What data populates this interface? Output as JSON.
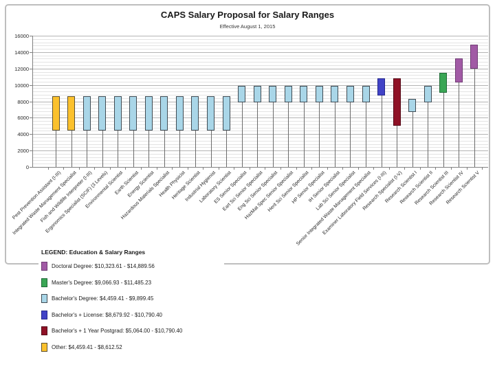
{
  "chart_data": {
    "type": "bar",
    "subtype": "floating-range-bars",
    "title": "CAPS Salary Proposal for Salary Ranges",
    "subtitle": "Effective August 1, 2015",
    "xlabel": "",
    "ylabel": "",
    "ylim": [
      0,
      16000
    ],
    "y_major_step": 2000,
    "y_minor_step": 400,
    "y_tick_labels": [
      "0",
      "2000",
      "4000",
      "6000",
      "8000",
      "10000",
      "12000",
      "14000",
      "16000"
    ],
    "grid": "horizontal",
    "legend_position": "below-left",
    "bars": [
      {
        "category": "Pest Prevention Assistant (I-III)",
        "low": 4459.41,
        "high": 8612.52,
        "education": "other"
      },
      {
        "category": "Integrated Waste Management Specialist",
        "low": 4459.41,
        "high": 8612.52,
        "education": "other"
      },
      {
        "category": "Fish and Wildlife Interpreter (I-III)",
        "low": 4459.41,
        "high": 8612.52,
        "education": "bachelors"
      },
      {
        "category": "Ergonomics Specialist (SCIF) (3 Levels)",
        "low": 4459.41,
        "high": 8612.52,
        "education": "bachelors"
      },
      {
        "category": "Environmental Scientist",
        "low": 4459.41,
        "high": 8612.52,
        "education": "bachelors"
      },
      {
        "category": "Earth Scientist",
        "low": 4459.41,
        "high": 8612.52,
        "education": "bachelors"
      },
      {
        "category": "Energy Scientist",
        "low": 4459.41,
        "high": 8612.52,
        "education": "bachelors"
      },
      {
        "category": "Hazardous Materials Specialist",
        "low": 4459.41,
        "high": 8612.52,
        "education": "bachelors"
      },
      {
        "category": "Health Physicist",
        "low": 4459.41,
        "high": 8612.52,
        "education": "bachelors"
      },
      {
        "category": "Heritage Scientist",
        "low": 4459.41,
        "high": 8612.52,
        "education": "bachelors"
      },
      {
        "category": "Industrial Hygienist",
        "low": 4459.41,
        "high": 8612.52,
        "education": "bachelors"
      },
      {
        "category": "Laboratory Scientist",
        "low": 4459.41,
        "high": 8612.52,
        "education": "bachelors"
      },
      {
        "category": "ES Senior Specialist",
        "low": 7900,
        "high": 9899.45,
        "education": "bachelors"
      },
      {
        "category": "Eart Sci Senior Specialist",
        "low": 7900,
        "high": 9899.45,
        "education": "bachelors"
      },
      {
        "category": "Eng Sci Senior Specialist",
        "low": 7900,
        "high": 9899.45,
        "education": "bachelors"
      },
      {
        "category": "HazMat Spec Senior Specialist",
        "low": 7900,
        "high": 9899.45,
        "education": "bachelors"
      },
      {
        "category": "Herit Sci Senior Specialist",
        "low": 7900,
        "high": 9899.45,
        "education": "bachelors"
      },
      {
        "category": "HP Senior Specialist",
        "low": 7900,
        "high": 9899.45,
        "education": "bachelors"
      },
      {
        "category": "IH Senior Specialist",
        "low": 7900,
        "high": 9899.45,
        "education": "bachelors"
      },
      {
        "category": "Lab Sci Senior Specialist",
        "low": 7900,
        "high": 9899.45,
        "education": "bachelors"
      },
      {
        "category": "Senior Integrated Waste Management Specialist",
        "low": 7900,
        "high": 9899.45,
        "education": "bachelors"
      },
      {
        "category": "Examiner Laboratory Field Services (I-III)",
        "low": 8679.92,
        "high": 10790.4,
        "education": "license"
      },
      {
        "category": "Research Specialist (I-V)",
        "low": 5064.0,
        "high": 10790.4,
        "education": "postgrad"
      },
      {
        "category": "Research Scientist I",
        "low": 6700,
        "high": 8300,
        "education": "bachelors"
      },
      {
        "category": "Research Scientist II",
        "low": 7900,
        "high": 9899.45,
        "education": "bachelors"
      },
      {
        "category": "Research Scientist III",
        "low": 9066.93,
        "high": 11485.23,
        "education": "masters"
      },
      {
        "category": "Research Scientist IV",
        "low": 10323.61,
        "high": 13200,
        "education": "doctoral"
      },
      {
        "category": "Research Scientist V",
        "low": 11950,
        "high": 14889.56,
        "education": "doctoral"
      }
    ]
  },
  "legend": {
    "title": "LEGEND: Education & Salary Ranges",
    "items": [
      {
        "key": "doctoral",
        "color": "#A15AA5",
        "border": "#6E3A73",
        "label": "Doctoral Degree: $10,323.61 - $14,889.56"
      },
      {
        "key": "masters",
        "color": "#3AA655",
        "border": "#206937",
        "label": "Master's Degree: $9,066.93 - $11,485.23"
      },
      {
        "key": "bachelors",
        "color": "#A9D6E8",
        "border": "#3F4A52",
        "label": "Bachelor's Degree: $4,459.41 - $9,899.45"
      },
      {
        "key": "license",
        "color": "#4143C6",
        "border": "#23268C",
        "label": "Bachelor's + License: $8,679.92 - $10,790.40"
      },
      {
        "key": "postgrad",
        "color": "#8F1126",
        "border": "#540917",
        "label": "Bachelor's + 1 Year Postgrad: $5,064.00 - $10,790.40"
      },
      {
        "key": "other",
        "color": "#FBC12D",
        "border": "#5C5030",
        "label": "Other: $4,459.41 - $8,612.52"
      }
    ]
  }
}
